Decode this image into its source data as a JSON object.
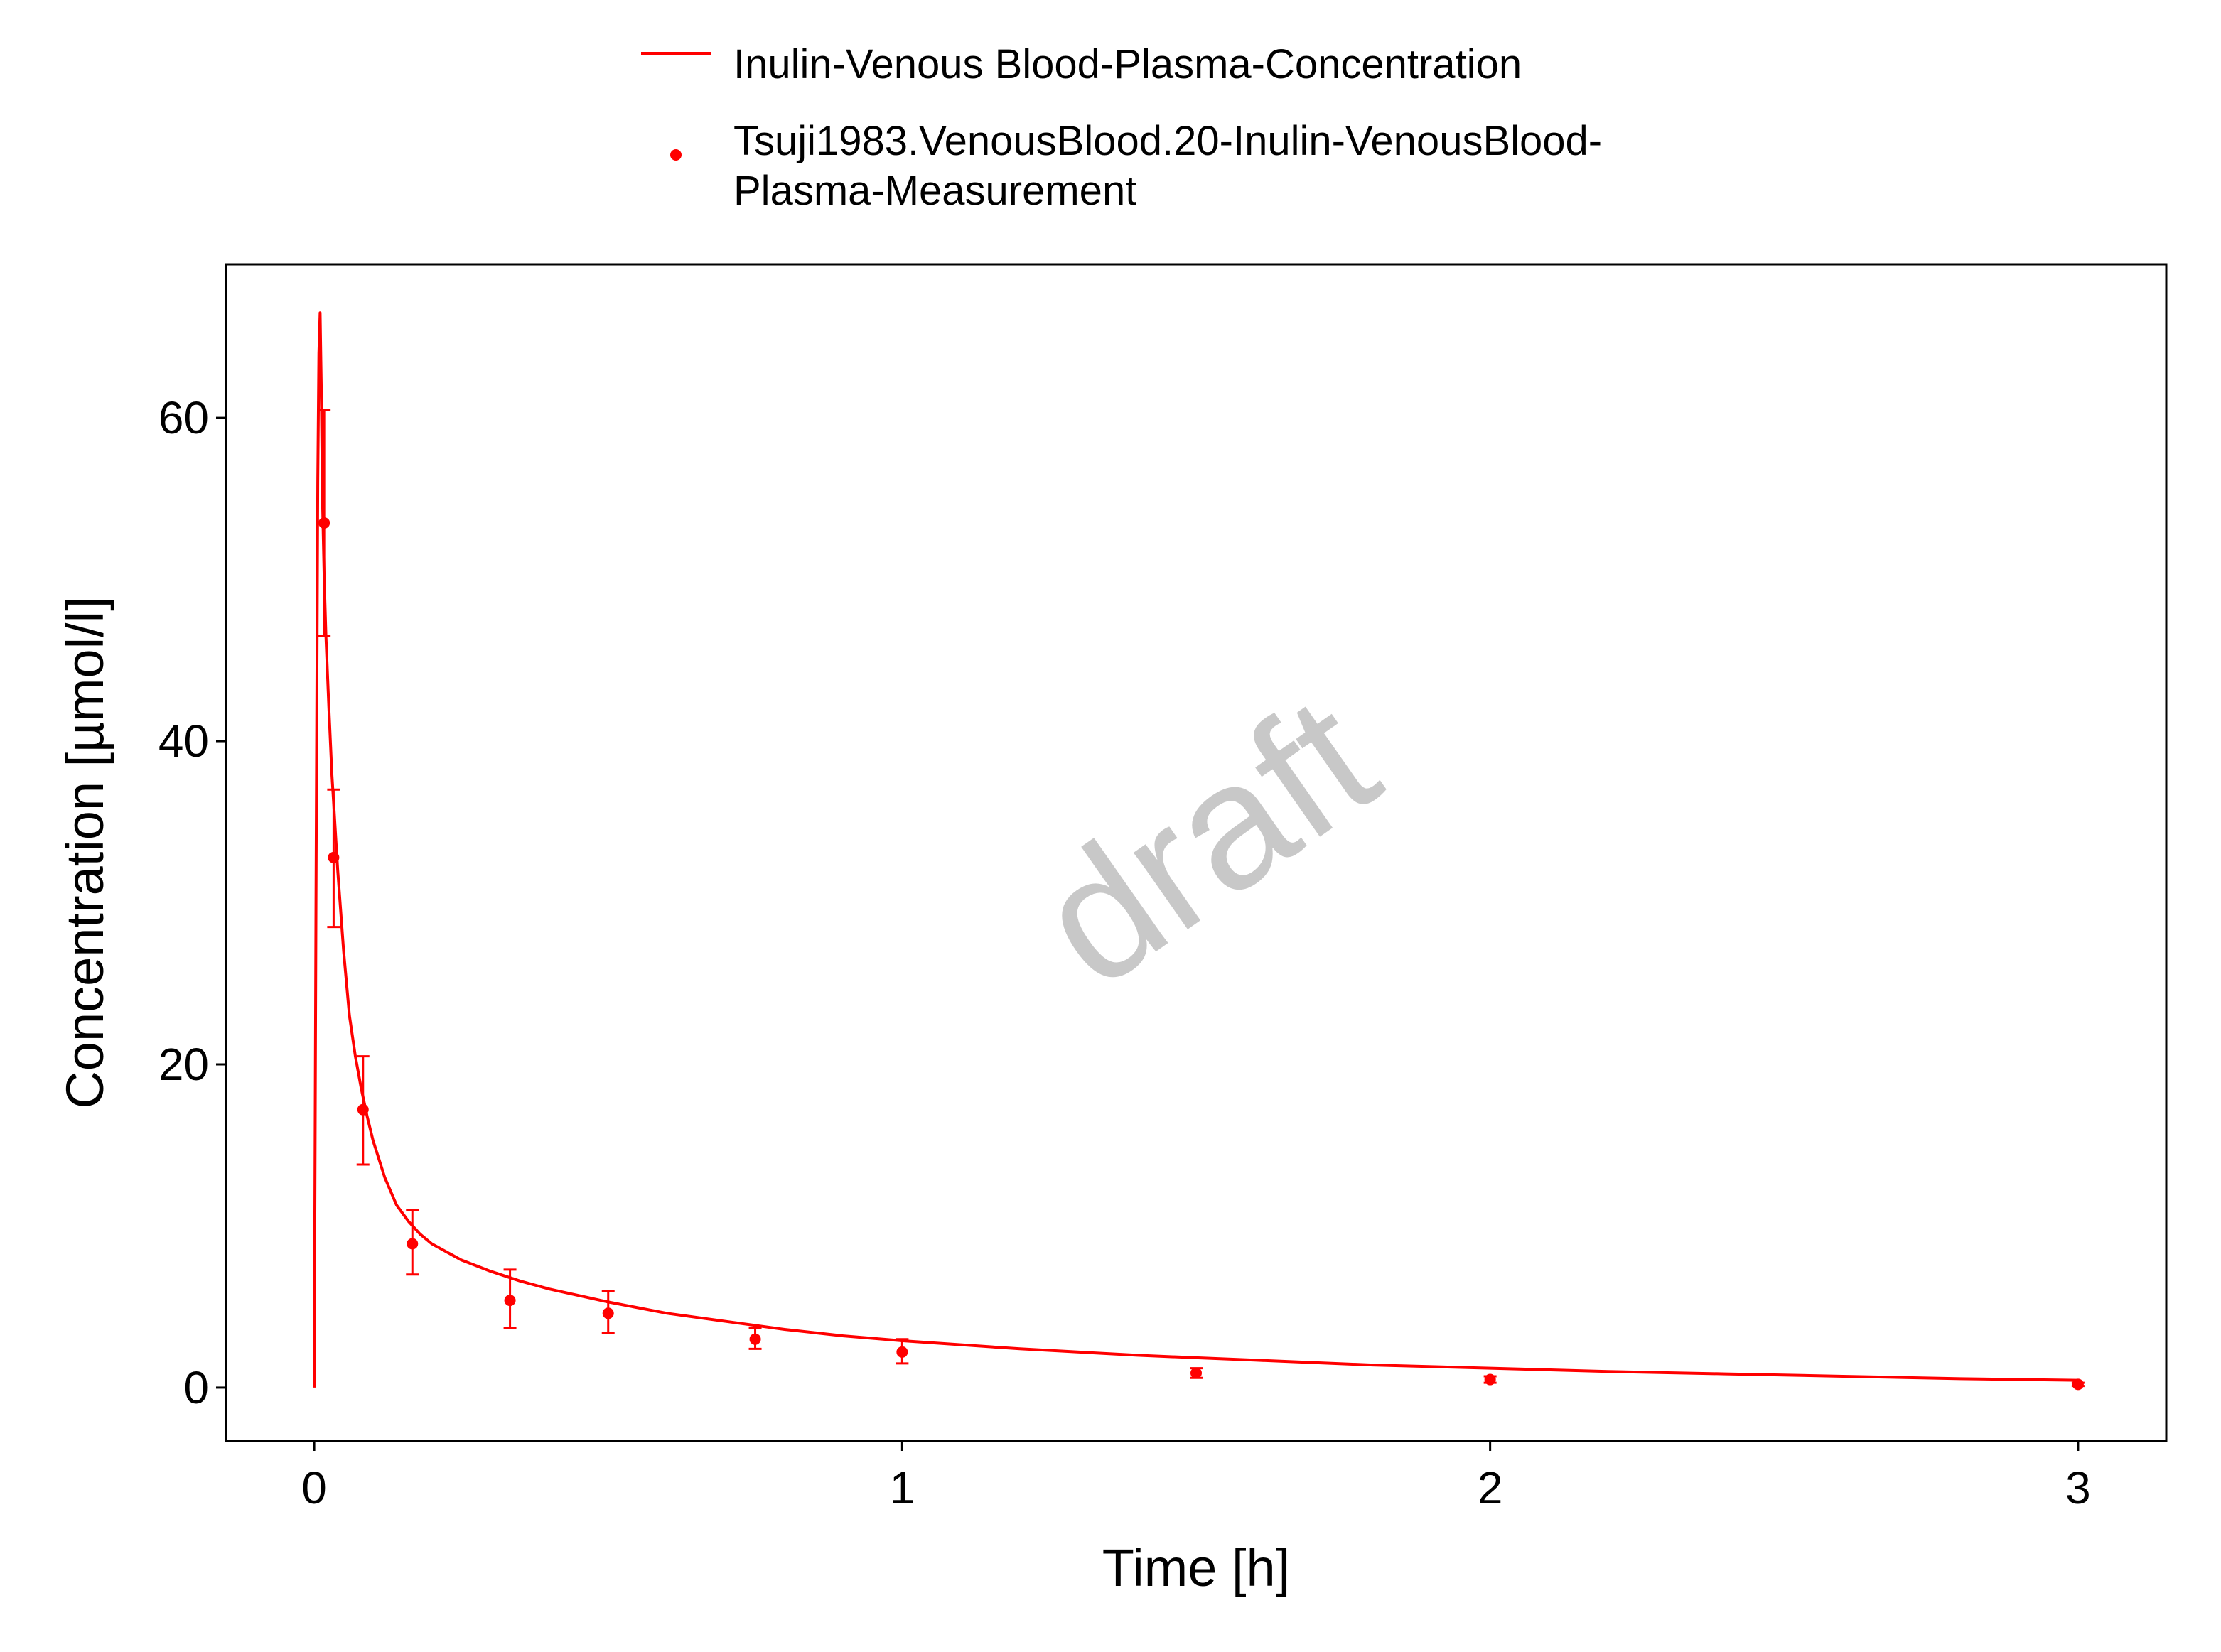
{
  "chart_data": {
    "type": "line",
    "xlabel": "Time [h]",
    "ylabel": "Concentration [µmol/l]",
    "xlim": [
      -0.15,
      3.15
    ],
    "ylim": [
      -3.3,
      69.5
    ],
    "x_ticks": [
      0,
      1,
      2,
      3
    ],
    "y_ticks": [
      0,
      20,
      40,
      60
    ],
    "grid": false,
    "legend_position": "top",
    "watermark": "draft",
    "colors": {
      "series": "#ff0000",
      "axis": "#000000",
      "watermark": "#c8c8c8"
    },
    "series": [
      {
        "name": "Inulin-Venous Blood-Plasma-Concentration",
        "kind": "line",
        "x": [
          0,
          0.003,
          0.006,
          0.008,
          0.01,
          0.012,
          0.014,
          0.017,
          0.02,
          0.025,
          0.03,
          0.04,
          0.05,
          0.06,
          0.07,
          0.08,
          0.09,
          0.1,
          0.12,
          0.14,
          0.16,
          0.18,
          0.2,
          0.25,
          0.3,
          0.35,
          0.4,
          0.5,
          0.6,
          0.7,
          0.8,
          0.9,
          1.0,
          1.2,
          1.4,
          1.5,
          1.6,
          1.8,
          2.0,
          2.2,
          2.4,
          2.6,
          2.8,
          3.0
        ],
        "y": [
          0,
          30,
          56,
          64,
          66.5,
          62,
          55,
          50,
          46.5,
          42,
          38,
          32,
          27,
          23,
          20.5,
          18.5,
          16.8,
          15.3,
          13,
          11.3,
          10.3,
          9.5,
          8.9,
          7.9,
          7.2,
          6.6,
          6.1,
          5.3,
          4.6,
          4.1,
          3.6,
          3.2,
          2.9,
          2.4,
          2.0,
          1.85,
          1.7,
          1.4,
          1.2,
          1.0,
          0.85,
          0.7,
          0.55,
          0.45
        ]
      },
      {
        "name": "Tsuji1983.VenousBlood.20-Inulin-VenousBlood-Plasma-Measurement",
        "legend_lines": [
          "Tsuji1983.VenousBlood.20-Inulin-VenousBlood-",
          "Plasma-Measurement"
        ],
        "kind": "points_with_error",
        "points": [
          {
            "x": 0.017,
            "y": 53.5,
            "lo": 46.5,
            "hi": 60.5
          },
          {
            "x": 0.033,
            "y": 32.8,
            "lo": 28.5,
            "hi": 37.0
          },
          {
            "x": 0.083,
            "y": 17.2,
            "lo": 13.8,
            "hi": 20.5
          },
          {
            "x": 0.167,
            "y": 8.9,
            "lo": 7.0,
            "hi": 11.0
          },
          {
            "x": 0.333,
            "y": 5.4,
            "lo": 3.7,
            "hi": 7.3
          },
          {
            "x": 0.5,
            "y": 4.6,
            "lo": 3.4,
            "hi": 6.0
          },
          {
            "x": 0.75,
            "y": 3.0,
            "lo": 2.4,
            "hi": 3.7
          },
          {
            "x": 1.0,
            "y": 2.2,
            "lo": 1.5,
            "hi": 3.0
          },
          {
            "x": 1.5,
            "y": 0.9,
            "lo": 0.6,
            "hi": 1.2
          },
          {
            "x": 2.0,
            "y": 0.5,
            "lo": 0.3,
            "hi": 0.7
          },
          {
            "x": 3.0,
            "y": 0.2,
            "lo": 0.1,
            "hi": 0.3
          }
        ]
      }
    ]
  }
}
